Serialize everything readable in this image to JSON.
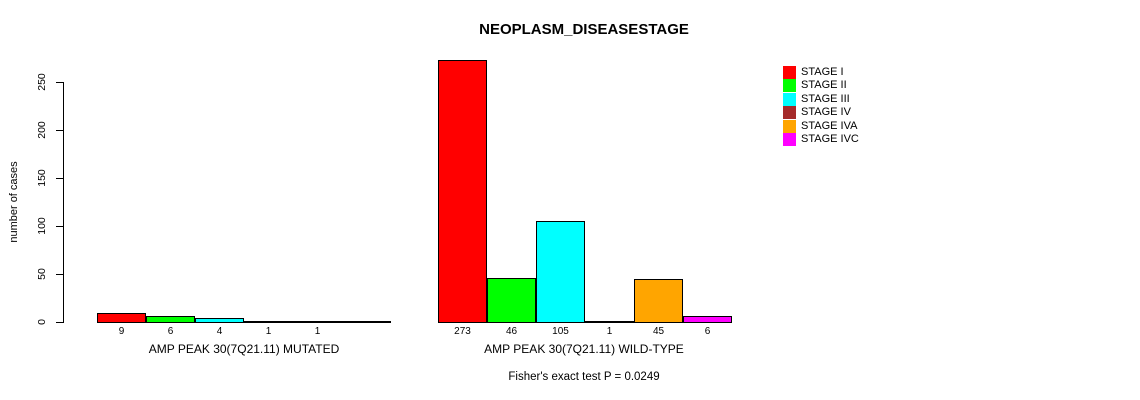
{
  "chart_data": {
    "type": "bar",
    "title": "NEOPLASM_DISEASESTAGE",
    "ylabel": "number of cases",
    "ylim": [
      0,
      250
    ],
    "yticks": [
      0,
      50,
      100,
      150,
      200,
      250
    ],
    "grid": false,
    "legend_position": "right",
    "categories": [
      "AMP PEAK 30(7Q21.11) MUTATED",
      "AMP PEAK 30(7Q21.11) WILD-TYPE"
    ],
    "series": [
      {
        "name": "STAGE I",
        "color": "#FF0000",
        "values": [
          9,
          273
        ]
      },
      {
        "name": "STAGE II",
        "color": "#00FF00",
        "values": [
          6,
          46
        ]
      },
      {
        "name": "STAGE III",
        "color": "#00FFFF",
        "values": [
          4,
          105
        ]
      },
      {
        "name": "STAGE IV",
        "color": "#A52A2A",
        "values": [
          1,
          1
        ]
      },
      {
        "name": "STAGE IVA",
        "color": "#FFA500",
        "values": [
          1,
          45
        ]
      },
      {
        "name": "STAGE IVC",
        "color": "#FF00FF",
        "values": [
          0,
          6
        ]
      }
    ],
    "value_labels": [
      [
        "9",
        "6",
        "4",
        "1",
        "1",
        ""
      ],
      [
        "273",
        "46",
        "105",
        "1",
        "45",
        "6"
      ]
    ],
    "annotation": "Fisher's exact test P = 0.0249"
  }
}
